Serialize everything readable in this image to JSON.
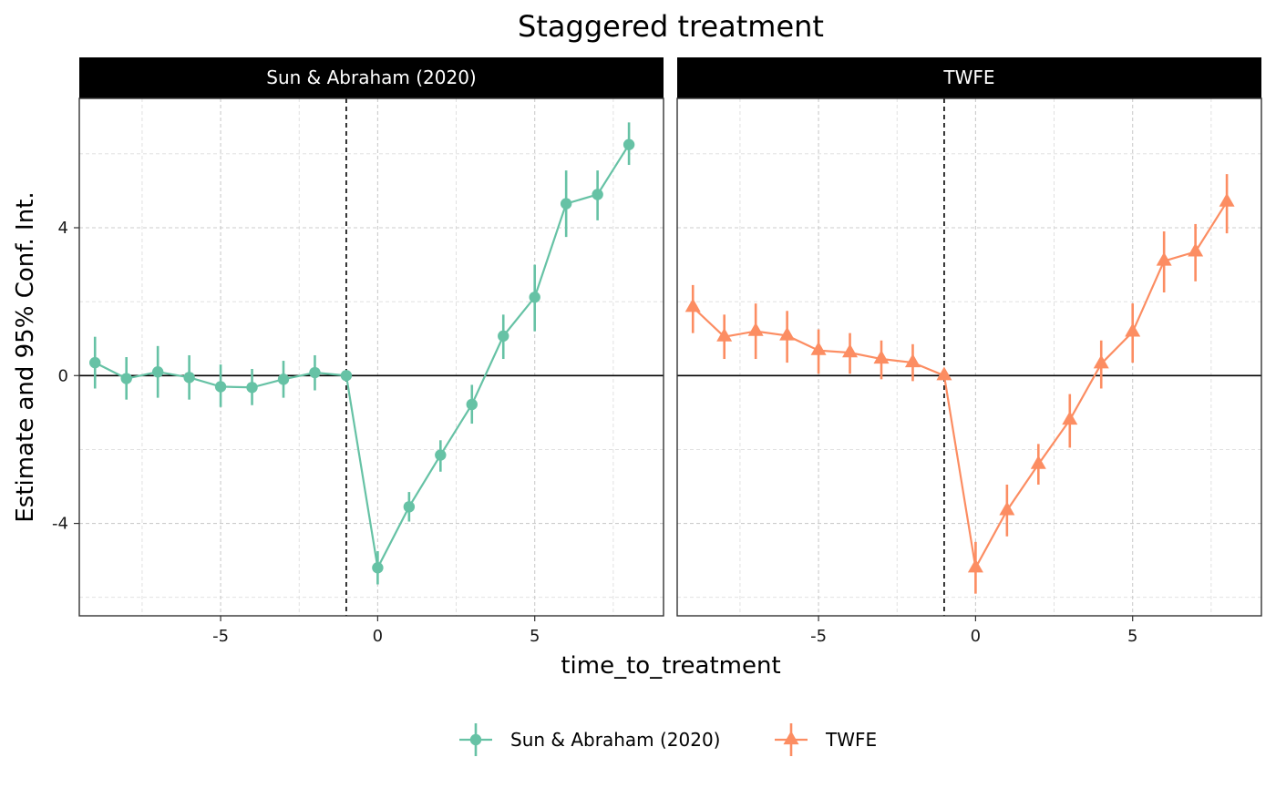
{
  "chart_data": {
    "type": "line",
    "title": "Staggered treatment",
    "xlabel": "time_to_treatment",
    "ylabel": "Estimate and 95% Conf. Int.",
    "xlim": [
      -9.5,
      9.1
    ],
    "ylim": [
      -6.5,
      7.5
    ],
    "x_ticks": [
      -5,
      0,
      5
    ],
    "y_ticks": [
      -4,
      0,
      4
    ],
    "x_tick_labels": [
      "-5",
      "0",
      "5"
    ],
    "y_tick_labels": [
      "-4",
      "0",
      "4"
    ],
    "reference_vline": -1,
    "reference_hline": 0,
    "grid": true,
    "legend_position": "bottom",
    "panels": [
      {
        "label": "Sun & Abraham (2020)",
        "series": [
          {
            "name": "Sun & Abraham (2020)",
            "color": "#66c2a5",
            "marker": "circle",
            "points": [
              {
                "x": -9,
                "y": 0.35,
                "lo": -0.35,
                "hi": 1.05
              },
              {
                "x": -8,
                "y": -0.08,
                "lo": -0.65,
                "hi": 0.5
              },
              {
                "x": -7,
                "y": 0.1,
                "lo": -0.6,
                "hi": 0.8
              },
              {
                "x": -6,
                "y": -0.05,
                "lo": -0.65,
                "hi": 0.55
              },
              {
                "x": -5,
                "y": -0.3,
                "lo": -0.85,
                "hi": 0.3
              },
              {
                "x": -4,
                "y": -0.32,
                "lo": -0.8,
                "hi": 0.18
              },
              {
                "x": -3,
                "y": -0.1,
                "lo": -0.6,
                "hi": 0.4
              },
              {
                "x": -2,
                "y": 0.08,
                "lo": -0.4,
                "hi": 0.55
              },
              {
                "x": -1,
                "y": 0,
                "lo": 0,
                "hi": 0
              },
              {
                "x": 0,
                "y": -5.2,
                "lo": -5.65,
                "hi": -4.75
              },
              {
                "x": 1,
                "y": -3.55,
                "lo": -3.95,
                "hi": -3.15
              },
              {
                "x": 2,
                "y": -2.15,
                "lo": -2.6,
                "hi": -1.75
              },
              {
                "x": 3,
                "y": -0.78,
                "lo": -1.3,
                "hi": -0.25
              },
              {
                "x": 4,
                "y": 1.07,
                "lo": 0.45,
                "hi": 1.65
              },
              {
                "x": 5,
                "y": 2.12,
                "lo": 1.2,
                "hi": 3.0
              },
              {
                "x": 6,
                "y": 4.65,
                "lo": 3.75,
                "hi": 5.55
              },
              {
                "x": 7,
                "y": 4.9,
                "lo": 4.2,
                "hi": 5.55
              },
              {
                "x": 8,
                "y": 6.25,
                "lo": 5.7,
                "hi": 6.85
              }
            ]
          }
        ]
      },
      {
        "label": "TWFE",
        "series": [
          {
            "name": "TWFE",
            "color": "#fc8d62",
            "marker": "triangle",
            "points": [
              {
                "x": -9,
                "y": 1.85,
                "lo": 1.15,
                "hi": 2.45
              },
              {
                "x": -8,
                "y": 1.05,
                "lo": 0.45,
                "hi": 1.65
              },
              {
                "x": -7,
                "y": 1.2,
                "lo": 0.45,
                "hi": 1.95
              },
              {
                "x": -6,
                "y": 1.08,
                "lo": 0.35,
                "hi": 1.75
              },
              {
                "x": -5,
                "y": 0.68,
                "lo": 0.05,
                "hi": 1.25
              },
              {
                "x": -4,
                "y": 0.62,
                "lo": 0.05,
                "hi": 1.15
              },
              {
                "x": -3,
                "y": 0.45,
                "lo": -0.1,
                "hi": 0.95
              },
              {
                "x": -2,
                "y": 0.35,
                "lo": -0.15,
                "hi": 0.85
              },
              {
                "x": -1,
                "y": 0,
                "lo": 0,
                "hi": 0
              },
              {
                "x": 0,
                "y": -5.2,
                "lo": -5.9,
                "hi": -4.5
              },
              {
                "x": 1,
                "y": -3.65,
                "lo": -4.35,
                "hi": -2.95
              },
              {
                "x": 2,
                "y": -2.4,
                "lo": -2.95,
                "hi": -1.85
              },
              {
                "x": 3,
                "y": -1.2,
                "lo": -1.95,
                "hi": -0.5
              },
              {
                "x": 4,
                "y": 0.32,
                "lo": -0.35,
                "hi": 0.95
              },
              {
                "x": 5,
                "y": 1.18,
                "lo": 0.35,
                "hi": 1.95
              },
              {
                "x": 6,
                "y": 3.1,
                "lo": 2.25,
                "hi": 3.9
              },
              {
                "x": 7,
                "y": 3.35,
                "lo": 2.55,
                "hi": 4.1
              },
              {
                "x": 8,
                "y": 4.7,
                "lo": 3.85,
                "hi": 5.45
              }
            ]
          }
        ]
      }
    ],
    "legend": [
      {
        "label": "Sun & Abraham (2020)",
        "color": "#66c2a5",
        "marker": "circle"
      },
      {
        "label": "TWFE",
        "color": "#fc8d62",
        "marker": "triangle"
      }
    ]
  }
}
